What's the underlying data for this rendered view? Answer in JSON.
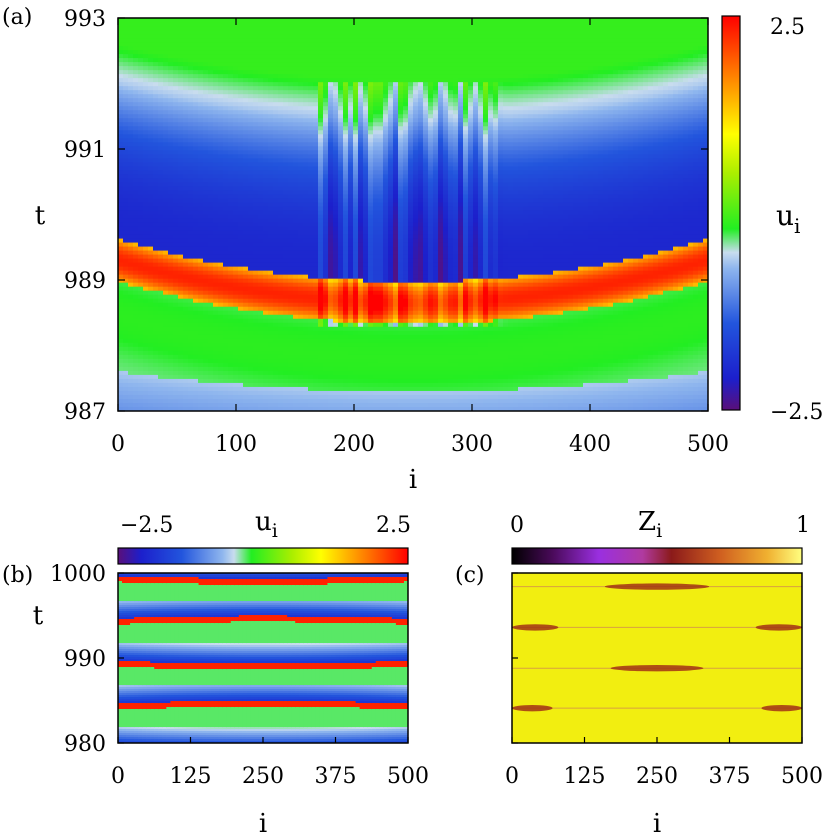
{
  "chart_data": [
    {
      "panel": "(a)",
      "type": "heatmap",
      "title": "",
      "xlabel": "i",
      "ylabel": "t",
      "xlim": [
        0,
        500
      ],
      "ylim": [
        987,
        993
      ],
      "x_ticks": [
        0,
        100,
        200,
        300,
        400,
        500
      ],
      "y_ticks": [
        987,
        989,
        991,
        993
      ],
      "x_tick_labels": [
        "0",
        "100",
        "200",
        "300",
        "400",
        "500"
      ],
      "y_tick_labels": [
        "987",
        "989",
        "991",
        "993"
      ],
      "colorbar": {
        "label_main": "u",
        "label_sub": "i",
        "range": [
          -2.5,
          2.5
        ],
        "tick_labels": [
          "2.5",
          "−2.5"
        ],
        "orientation": "vertical",
        "colormap": [
          "#5a0f7a",
          "#1c1fcc",
          "#2255dd",
          "#8fb6ee",
          "#c8dcee",
          "#22ee22",
          "#aaee00",
          "#ffff00",
          "#ffaa00",
          "#ff5500",
          "#ff0000"
        ]
      },
      "description_values": {
        "stripe_center_t_edges": 989.3,
        "stripe_center_t_middle": 988.7,
        "stripe_halfwidth": 0.3
      }
    },
    {
      "panel": "(b)",
      "type": "heatmap",
      "xlabel": "i",
      "ylabel": "t",
      "xlim": [
        0,
        500
      ],
      "ylim": [
        980,
        1000
      ],
      "x_ticks": [
        0,
        125,
        250,
        375,
        500
      ],
      "y_ticks": [
        980,
        990,
        1000
      ],
      "x_tick_labels": [
        "0",
        "125",
        "250",
        "375",
        "500"
      ],
      "y_tick_labels": [
        "980",
        "990",
        "1000"
      ],
      "colorbar": {
        "label_main": "u",
        "label_sub": "i",
        "range": [
          -2.5,
          2.5
        ],
        "tick_labels": [
          "−2.5",
          "2.5"
        ],
        "orientation": "horizontal"
      }
    },
    {
      "panel": "(c)",
      "type": "heatmap",
      "xlabel": "i",
      "ylabel": "",
      "xlim": [
        0,
        500
      ],
      "ylim": [
        980,
        1000
      ],
      "x_ticks": [
        0,
        125,
        250,
        375,
        500
      ],
      "x_tick_labels": [
        "0",
        "125",
        "250",
        "375",
        "500"
      ],
      "colorbar": {
        "label_main": "Z",
        "label_sub": "i",
        "range": [
          0,
          1
        ],
        "tick_labels": [
          "0",
          "1"
        ],
        "orientation": "horizontal",
        "colormap": [
          "#000000",
          "#4a0a5a",
          "#9a2fe0",
          "#c04080",
          "#8b1a1a",
          "#d06020",
          "#f0b030",
          "#ffff80"
        ]
      }
    }
  ],
  "panel_labels": {
    "a": "(a)",
    "b": "(b)",
    "c": "(c)"
  }
}
